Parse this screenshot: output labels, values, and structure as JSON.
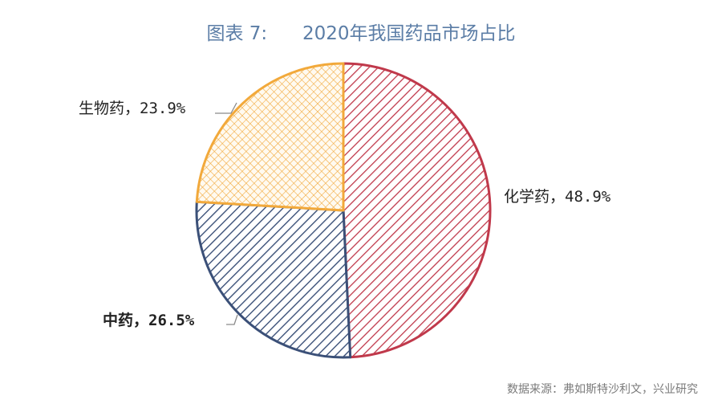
{
  "title": "图表 7:      2020年我国药品市场占比",
  "source": "数据来源：弗如斯特沙利文，兴业研究",
  "colors": {
    "chemical": "#c0394b",
    "tcm": "#3b5078",
    "bio": "#f2a93b",
    "title": "#5b7da6"
  },
  "chart_data": {
    "type": "pie",
    "categories": [
      "化学药",
      "中药",
      "生物药"
    ],
    "values": [
      48.9,
      26.5,
      23.9
    ],
    "labels": [
      "化学药，48.9%",
      "中药，26.5%",
      "生物药，23.9%"
    ],
    "fill_patterns": [
      "diagonal-hatch",
      "diagonal-hatch",
      "crosshatch"
    ],
    "start_angle": "12 o'clock",
    "direction": "clockwise"
  }
}
